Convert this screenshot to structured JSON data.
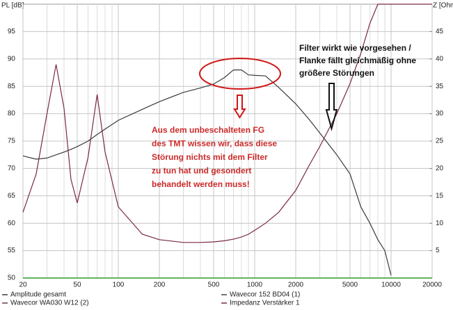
{
  "chart_data": {
    "type": "line",
    "y_label": "PL [dB]",
    "y2_label": "Z [Ohm",
    "log_x": true,
    "grid": true,
    "xlim": [
      20,
      20000
    ],
    "xticks": [
      20,
      50,
      100,
      200,
      500,
      1000,
      2000,
      5000,
      10000,
      20000
    ],
    "x_minor_ticks": [
      30,
      40,
      60,
      70,
      80,
      90,
      300,
      400,
      600,
      700,
      800,
      900,
      3000,
      4000,
      6000,
      7000,
      8000,
      9000
    ],
    "ylim": [
      50,
      100
    ],
    "yticks": [
      50,
      55,
      60,
      65,
      70,
      75,
      80,
      85,
      90,
      95
    ],
    "y2lim": [
      0,
      50
    ],
    "y2ticks": [
      5,
      10,
      15,
      20,
      25,
      30,
      35,
      40,
      45
    ],
    "x": [
      20,
      25,
      30,
      35,
      40,
      45,
      50,
      60,
      70,
      80,
      100,
      150,
      200,
      300,
      400,
      500,
      600,
      700,
      800,
      900,
      1000,
      1200,
      1500,
      2000,
      2500,
      3000,
      4000,
      5000,
      6000,
      7000,
      8000,
      9000,
      10000,
      11000,
      12000,
      15000,
      20000
    ],
    "series": [
      {
        "name": "Amplitude gesamt",
        "color": "#3a3a3a",
        "values": [
          72.3,
          71.7,
          71.9,
          72.5,
          73,
          73.5,
          74,
          75,
          76.2,
          77.2,
          78.8,
          80.8,
          82.2,
          83.9,
          84.7,
          85.4,
          86.6,
          88,
          88,
          87.1,
          87,
          86.9,
          84.8,
          81.8,
          79,
          76.5,
          72.5,
          69,
          63,
          60,
          57,
          55,
          50.5,
          null,
          null,
          null,
          null
        ]
      },
      {
        "name": "Wavecor WA030 W12 (2)",
        "color": "#6a3a3a",
        "values": [
          null,
          null,
          null,
          null,
          null,
          null,
          null,
          null,
          null,
          null,
          null,
          null,
          null,
          null,
          null,
          null,
          null,
          null,
          null,
          null,
          null,
          null,
          null,
          null,
          null,
          null,
          null,
          null,
          null,
          null,
          null,
          null,
          null,
          null,
          null,
          null,
          null
        ]
      },
      {
        "name": "Wavecor 152 BD04 (1)",
        "color": "#444444",
        "values": [
          null,
          null,
          null,
          null,
          null,
          null,
          null,
          null,
          null,
          null,
          null,
          null,
          null,
          null,
          null,
          null,
          null,
          null,
          null,
          null,
          null,
          null,
          null,
          null,
          null,
          null,
          null,
          null,
          null,
          null,
          null,
          null,
          null,
          null,
          null,
          null,
          null
        ]
      },
      {
        "name": "Impedanz Verstärker 1",
        "color": "#7a2840",
        "axis": "y2",
        "values": [
          12,
          19,
          30,
          39,
          31,
          18,
          13.7,
          22,
          33.5,
          23,
          13,
          8,
          7,
          6.5,
          6.5,
          6.6,
          6.8,
          7.1,
          7.5,
          8,
          8.7,
          10,
          12,
          16,
          20.5,
          24,
          30,
          35.5,
          41,
          46.5,
          50,
          50,
          50,
          50,
          50,
          50,
          50
        ]
      }
    ],
    "annotations": [
      {
        "color": "#111111",
        "lines": [
          "Filter wirkt wie vorgesehen /",
          "Flanke fällt gleichmäßig ohne",
          "größere Störungen"
        ]
      },
      {
        "color": "#cc2a2a",
        "lines": [
          "Aus dem unbeschalteten FG",
          "des TMT wissen wir, dass diese",
          "Störung nichts mit dem Filter",
          "zu tun hat und gesondert",
          "behandelt werden muss!"
        ]
      }
    ]
  }
}
